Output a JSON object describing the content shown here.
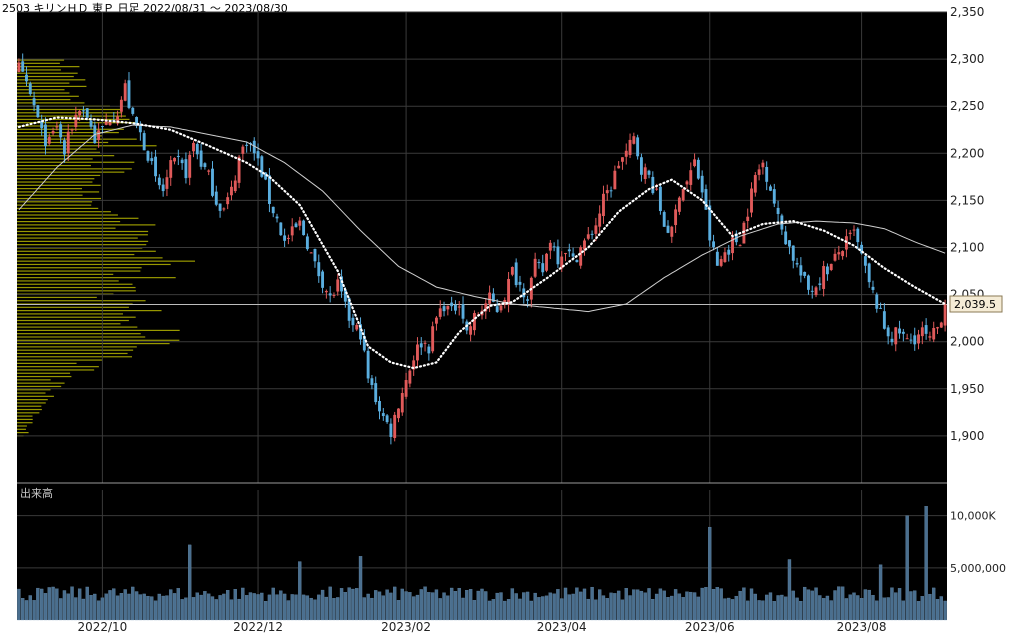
{
  "header": {
    "title": "2503 キリンＨＤ 東Ｐ 日足 2022/08/31 ～ 2023/08/30"
  },
  "chart_data": [
    {
      "type": "candlestick",
      "name": "price",
      "title": "2503 キリンＨＤ 東Ｐ 日足 2022/08/31 ～ 2023/08/30",
      "ylim": [
        1850,
        2350
      ],
      "y_ticks": [
        "1,900",
        "1,950",
        "2,000",
        "2,050",
        "2,100",
        "2,150",
        "2,200",
        "2,250",
        "2,300",
        "2,350"
      ],
      "y_tick_values": [
        1900,
        1950,
        2000,
        2050,
        2100,
        2150,
        2200,
        2250,
        2300,
        2350
      ],
      "x_ticks": [
        "2022/10",
        "2022/12",
        "2023/02",
        "2023/04",
        "2023/06",
        "2023/08"
      ],
      "x_tick_index": [
        22,
        63,
        102,
        143,
        182,
        222
      ],
      "n_days": 245,
      "last_price": 2039.5,
      "last_price_label": "2,039.5",
      "grid": true,
      "colors": {
        "up": "#e05a5a",
        "down": "#5aaedf",
        "sma_short": "#ffffff",
        "sma_long": "#cfcfcf",
        "volume_bar": "#2f4f66",
        "volume_profile": "#b3b300",
        "background": "#000000",
        "grid": "#3a3a3a",
        "text": "#c8c8c8"
      },
      "close_anchors": [
        [
          0,
          2290
        ],
        [
          2,
          2270
        ],
        [
          4,
          2250
        ],
        [
          6,
          2220
        ],
        [
          8,
          2210
        ],
        [
          10,
          2230
        ],
        [
          12,
          2200
        ],
        [
          14,
          2230
        ],
        [
          16,
          2250
        ],
        [
          18,
          2240
        ],
        [
          20,
          2215
        ],
        [
          22,
          2225
        ],
        [
          24,
          2240
        ],
        [
          26,
          2245
        ],
        [
          28,
          2270
        ],
        [
          30,
          2235
        ],
        [
          32,
          2220
        ],
        [
          34,
          2200
        ],
        [
          36,
          2170
        ],
        [
          38,
          2160
        ],
        [
          40,
          2185
        ],
        [
          42,
          2190
        ],
        [
          44,
          2180
        ],
        [
          46,
          2210
        ],
        [
          48,
          2190
        ],
        [
          50,
          2175
        ],
        [
          52,
          2150
        ],
        [
          54,
          2140
        ],
        [
          56,
          2160
        ],
        [
          58,
          2195
        ],
        [
          60,
          2215
        ],
        [
          62,
          2200
        ],
        [
          64,
          2180
        ],
        [
          66,
          2150
        ],
        [
          68,
          2130
        ],
        [
          70,
          2105
        ],
        [
          72,
          2115
        ],
        [
          74,
          2125
        ],
        [
          76,
          2105
        ],
        [
          78,
          2080
        ],
        [
          80,
          2065
        ],
        [
          82,
          2045
        ],
        [
          84,
          2060
        ],
        [
          86,
          2035
        ],
        [
          88,
          2015
        ],
        [
          90,
          2010
        ],
        [
          92,
          1960
        ],
        [
          94,
          1940
        ],
        [
          96,
          1920
        ],
        [
          98,
          1905
        ],
        [
          100,
          1935
        ],
        [
          102,
          1960
        ],
        [
          104,
          1985
        ],
        [
          106,
          2000
        ],
        [
          108,
          1995
        ],
        [
          110,
          2025
        ],
        [
          112,
          2040
        ],
        [
          114,
          2030
        ],
        [
          116,
          2045
        ],
        [
          118,
          2010
        ],
        [
          120,
          2025
        ],
        [
          122,
          2035
        ],
        [
          124,
          2045
        ],
        [
          126,
          2035
        ],
        [
          128,
          2050
        ],
        [
          130,
          2075
        ],
        [
          132,
          2060
        ],
        [
          134,
          2050
        ],
        [
          136,
          2080
        ],
        [
          138,
          2075
        ],
        [
          140,
          2110
        ],
        [
          142,
          2090
        ],
        [
          144,
          2100
        ],
        [
          146,
          2085
        ],
        [
          148,
          2100
        ],
        [
          150,
          2110
        ],
        [
          152,
          2125
        ],
        [
          154,
          2150
        ],
        [
          156,
          2165
        ],
        [
          158,
          2190
        ],
        [
          160,
          2200
        ],
        [
          162,
          2215
        ],
        [
          164,
          2185
        ],
        [
          166,
          2175
        ],
        [
          168,
          2155
        ],
        [
          170,
          2125
        ],
        [
          172,
          2115
        ],
        [
          174,
          2160
        ],
        [
          176,
          2170
        ],
        [
          178,
          2190
        ],
        [
          180,
          2160
        ],
        [
          182,
          2110
        ],
        [
          184,
          2080
        ],
        [
          186,
          2095
        ],
        [
          188,
          2105
        ],
        [
          190,
          2110
        ],
        [
          192,
          2140
        ],
        [
          194,
          2175
        ],
        [
          196,
          2190
        ],
        [
          198,
          2165
        ],
        [
          200,
          2130
        ],
        [
          202,
          2110
        ],
        [
          204,
          2090
        ],
        [
          206,
          2070
        ],
        [
          208,
          2055
        ],
        [
          210,
          2060
        ],
        [
          212,
          2075
        ],
        [
          214,
          2080
        ],
        [
          216,
          2095
        ],
        [
          218,
          2105
        ],
        [
          220,
          2115
        ],
        [
          222,
          2090
        ],
        [
          224,
          2060
        ],
        [
          226,
          2040
        ],
        [
          228,
          2015
        ],
        [
          230,
          2005
        ],
        [
          232,
          2010
        ],
        [
          234,
          2000
        ],
        [
          236,
          2005
        ],
        [
          238,
          2010
        ],
        [
          240,
          2000
        ],
        [
          242,
          2015
        ],
        [
          244,
          2039.5
        ]
      ],
      "sma_short_anchors": [
        [
          0,
          2228
        ],
        [
          10,
          2238
        ],
        [
          20,
          2236
        ],
        [
          30,
          2232
        ],
        [
          40,
          2225
        ],
        [
          50,
          2208
        ],
        [
          60,
          2190
        ],
        [
          66,
          2175
        ],
        [
          74,
          2145
        ],
        [
          84,
          2075
        ],
        [
          92,
          1995
        ],
        [
          98,
          1978
        ],
        [
          104,
          1972
        ],
        [
          110,
          1978
        ],
        [
          116,
          2010
        ],
        [
          124,
          2038
        ],
        [
          130,
          2042
        ],
        [
          140,
          2070
        ],
        [
          150,
          2100
        ],
        [
          158,
          2138
        ],
        [
          166,
          2162
        ],
        [
          172,
          2172
        ],
        [
          180,
          2150
        ],
        [
          188,
          2112
        ],
        [
          196,
          2125
        ],
        [
          204,
          2128
        ],
        [
          212,
          2118
        ],
        [
          220,
          2102
        ],
        [
          228,
          2078
        ],
        [
          236,
          2058
        ],
        [
          244,
          2040
        ]
      ],
      "sma_long_anchors": [
        [
          0,
          2140
        ],
        [
          10,
          2185
        ],
        [
          20,
          2220
        ],
        [
          30,
          2230
        ],
        [
          40,
          2228
        ],
        [
          50,
          2220
        ],
        [
          60,
          2212
        ],
        [
          70,
          2190
        ],
        [
          80,
          2160
        ],
        [
          90,
          2118
        ],
        [
          100,
          2080
        ],
        [
          110,
          2058
        ],
        [
          120,
          2048
        ],
        [
          130,
          2040
        ],
        [
          140,
          2036
        ],
        [
          150,
          2032
        ],
        [
          160,
          2040
        ],
        [
          170,
          2068
        ],
        [
          180,
          2092
        ],
        [
          190,
          2112
        ],
        [
          200,
          2125
        ],
        [
          210,
          2128
        ],
        [
          220,
          2126
        ],
        [
          228,
          2120
        ],
        [
          236,
          2106
        ],
        [
          244,
          2094
        ]
      ],
      "volume_profile_anchors": [
        [
          2290,
          55
        ],
        [
          2265,
          75
        ],
        [
          2240,
          95
        ],
        [
          2215,
          120
        ],
        [
          2195,
          110
        ],
        [
          2175,
          95
        ],
        [
          2150,
          70
        ],
        [
          2130,
          110
        ],
        [
          2110,
          145
        ],
        [
          2095,
          160
        ],
        [
          2080,
          150
        ],
        [
          2065,
          135
        ],
        [
          2050,
          120
        ],
        [
          2040,
          110
        ],
        [
          2030,
          130
        ],
        [
          2015,
          145
        ],
        [
          2005,
          150
        ],
        [
          1995,
          125
        ],
        [
          1980,
          90
        ],
        [
          1965,
          55
        ],
        [
          1950,
          40
        ],
        [
          1935,
          28
        ],
        [
          1920,
          18
        ],
        [
          1905,
          10
        ]
      ]
    },
    {
      "type": "bar",
      "name": "volume",
      "title": "出来高",
      "ylim": [
        0,
        11500000
      ],
      "y_ticks": [
        "5,000,000",
        "10,000K"
      ],
      "y_tick_values": [
        5000000,
        10000000
      ],
      "baseline_range": [
        1800000,
        3200000
      ],
      "spikes": [
        [
          45,
          7200000
        ],
        [
          74,
          5600000
        ],
        [
          90,
          6100000
        ],
        [
          182,
          8900000
        ],
        [
          203,
          5800000
        ],
        [
          227,
          5300000
        ],
        [
          234,
          10000000
        ],
        [
          239,
          10900000
        ]
      ]
    }
  ]
}
